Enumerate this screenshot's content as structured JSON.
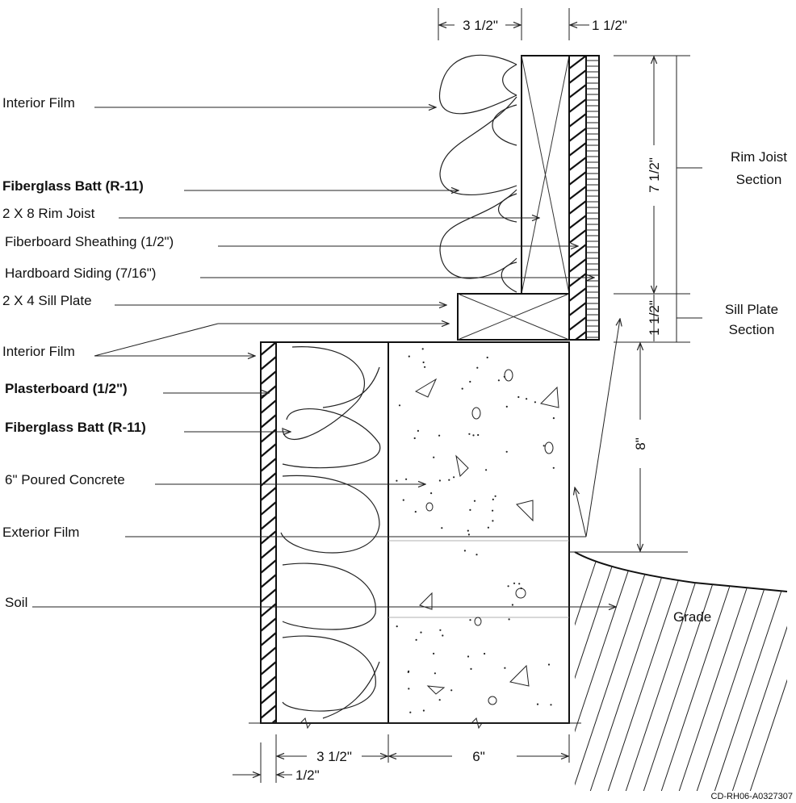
{
  "labels": {
    "interior_film_top": "Interior Film",
    "fiberglass_top": "Fiberglass Batt (R-11)",
    "rim_joist": "2 X 8 Rim Joist",
    "fiberboard": "Fiberboard Sheathing (1/2\")",
    "hardboard": "Hardboard Siding (7/16\")",
    "sill_plate": "2 X 4 Sill Plate",
    "interior_film_bottom": "Interior Film",
    "plasterboard": "Plasterboard  (1/2\")",
    "fiberglass_bottom": "Fiberglass Batt (R-11)",
    "concrete": "6\" Poured Concrete",
    "exterior_film": "Exterior Film",
    "soil": "Soil",
    "grade": "Grade"
  },
  "sections": {
    "rim_joist_line1": "Rim Joist",
    "rim_joist_line2": "Section",
    "sill_plate_line1": "Sill Plate",
    "sill_plate_line2": "Section"
  },
  "dimensions": {
    "top_batt_width": "3 1/2\"",
    "top_siding_width": "1 1/2\"",
    "rim_height": "7 1/2\"",
    "sill_height": "1 1/2\"",
    "above_grade": "8\"",
    "bottom_batt_width": "3 1/2\"",
    "concrete_width": "6\"",
    "plasterboard_width": "1/2\""
  },
  "drawing_code": "CD-RH06-A0327307"
}
